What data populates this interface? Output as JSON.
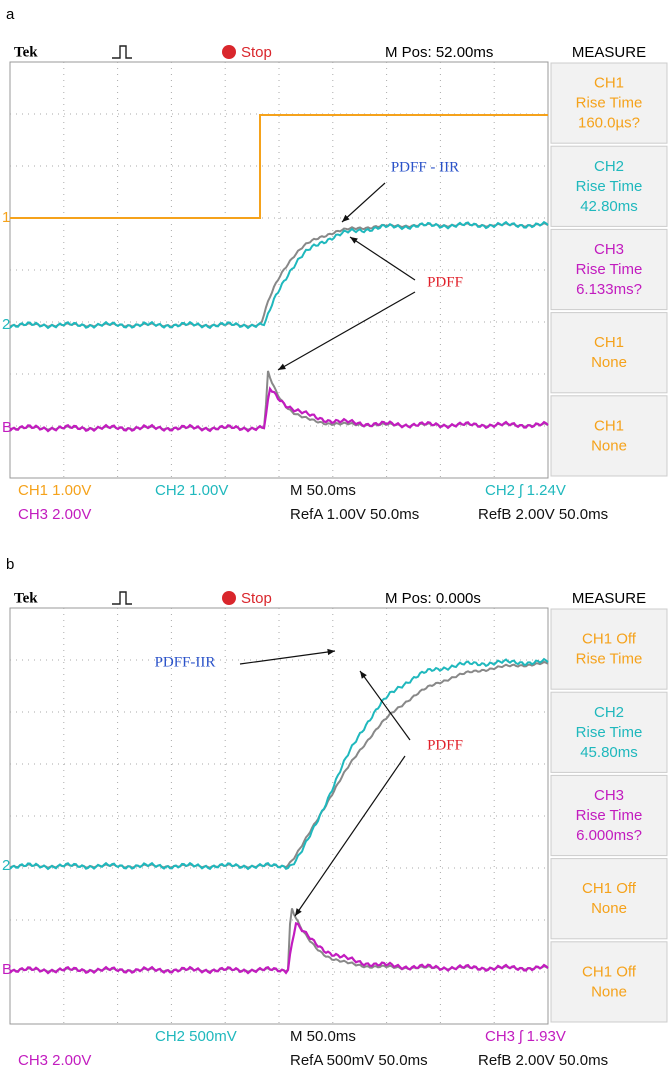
{
  "panels": [
    {
      "label": "a",
      "header": {
        "brand": "Tek",
        "status": "Stop",
        "position": "M Pos: 52.00ms",
        "menu": "MEASURE"
      },
      "measurements": [
        {
          "color": "#f5a21b",
          "lines": [
            "CH1",
            "Rise Time",
            "160.0µs?"
          ]
        },
        {
          "color": "#1fb8bd",
          "lines": [
            "CH2",
            "Rise Time",
            "42.80ms"
          ]
        },
        {
          "color": "#c21cbf",
          "lines": [
            "CH3",
            "Rise Time",
            "6.133ms?"
          ]
        },
        {
          "color": "#f5a21b",
          "lines": [
            "CH1",
            "None"
          ]
        },
        {
          "color": "#f5a21b",
          "lines": [
            "CH1",
            "None"
          ]
        }
      ],
      "markers": [
        {
          "text": "1",
          "color": "#f5a21b"
        },
        {
          "text": "2",
          "color": "#1fb8bd"
        },
        {
          "text": "B",
          "color": "#c21cbf"
        }
      ],
      "annotations": [
        {
          "text": "PDFF - IIR",
          "color": "#2a52c9"
        },
        {
          "text": "PDFF",
          "color": "#e0202a"
        }
      ],
      "footer": {
        "row1": [
          {
            "text": "CH1  1.00V",
            "color": "#f5a21b"
          },
          {
            "text": "CH2  1.00V",
            "color": "#1fb8bd"
          },
          {
            "text": "M 50.0ms",
            "color": "#111"
          },
          {
            "text": "CH2 ʃ 1.24V",
            "color": "#1fb8bd"
          }
        ],
        "row2": [
          {
            "text": "CH3  2.00V",
            "color": "#c21cbf"
          },
          {
            "text": "RefA 1.00V 50.0ms",
            "color": "#111"
          },
          {
            "text": "RefB 2.00V 50.0ms",
            "color": "#111"
          }
        ]
      }
    },
    {
      "label": "b",
      "header": {
        "brand": "Tek",
        "status": "Stop",
        "position": "M Pos: 0.000s",
        "menu": "MEASURE"
      },
      "measurements": [
        {
          "color": "#f5a21b",
          "lines": [
            "CH1 Off",
            "Rise Time"
          ]
        },
        {
          "color": "#1fb8bd",
          "lines": [
            "CH2",
            "Rise Time",
            "45.80ms"
          ]
        },
        {
          "color": "#c21cbf",
          "lines": [
            "CH3",
            "Rise Time",
            "6.000ms?"
          ]
        },
        {
          "color": "#f5a21b",
          "lines": [
            "CH1 Off",
            "None"
          ]
        },
        {
          "color": "#f5a21b",
          "lines": [
            "CH1 Off",
            "None"
          ]
        }
      ],
      "markers": [
        {
          "text": "2",
          "color": "#1fb8bd"
        },
        {
          "text": "B",
          "color": "#c21cbf"
        }
      ],
      "annotations": [
        {
          "text": "PDFF-IIR",
          "color": "#2a52c9"
        },
        {
          "text": "PDFF",
          "color": "#e0202a"
        }
      ],
      "footer": {
        "row1": [
          {
            "text": "CH2  500mV",
            "color": "#1fb8bd"
          },
          {
            "text": "M 50.0ms",
            "color": "#111"
          },
          {
            "text": "CH3 ʃ 1.93V",
            "color": "#c21cbf"
          }
        ],
        "row2": [
          {
            "text": "CH3  2.00V",
            "color": "#c21cbf"
          },
          {
            "text": "RefA 500mV 50.0ms",
            "color": "#111"
          },
          {
            "text": "RefB 2.00V 50.0ms",
            "color": "#111"
          }
        ]
      }
    }
  ]
}
